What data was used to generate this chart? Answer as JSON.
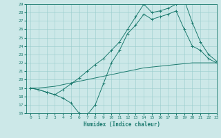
{
  "xlabel": "Humidex (Indice chaleur)",
  "x": [
    0,
    1,
    2,
    3,
    4,
    5,
    6,
    7,
    8,
    9,
    10,
    11,
    12,
    13,
    14,
    15,
    16,
    17,
    18,
    19,
    20,
    21,
    22,
    23
  ],
  "line_dip": [
    19.0,
    18.8,
    18.5,
    18.2,
    17.8,
    17.2,
    16.0,
    15.8,
    17.0,
    19.5,
    22.0,
    23.5,
    25.5,
    26.5,
    27.8,
    27.2,
    27.5,
    27.8,
    28.2,
    26.0,
    24.0,
    23.5,
    22.5,
    22.0
  ],
  "line_top": [
    19.0,
    18.8,
    18.5,
    18.2,
    18.8,
    19.5,
    20.2,
    21.0,
    21.8,
    22.5,
    23.5,
    24.5,
    26.0,
    27.5,
    29.0,
    28.0,
    28.2,
    28.5,
    29.0,
    29.5,
    26.8,
    24.5,
    23.0,
    22.2
  ],
  "line_low": [
    19.0,
    19.0,
    19.1,
    19.2,
    19.4,
    19.6,
    19.8,
    20.0,
    20.2,
    20.4,
    20.6,
    20.8,
    21.0,
    21.2,
    21.4,
    21.5,
    21.6,
    21.7,
    21.8,
    21.9,
    22.0,
    22.0,
    22.0,
    22.0
  ],
  "ylim": [
    16,
    29
  ],
  "xlim": [
    -0.5,
    23
  ],
  "yticks": [
    16,
    17,
    18,
    19,
    20,
    21,
    22,
    23,
    24,
    25,
    26,
    27,
    28,
    29
  ],
  "xticks": [
    0,
    1,
    2,
    3,
    4,
    5,
    6,
    7,
    8,
    9,
    10,
    11,
    12,
    13,
    14,
    15,
    16,
    17,
    18,
    19,
    20,
    21,
    22,
    23
  ],
  "color": "#1b7a6e",
  "bg_color": "#cce8e8",
  "grid_color": "#99cccc"
}
